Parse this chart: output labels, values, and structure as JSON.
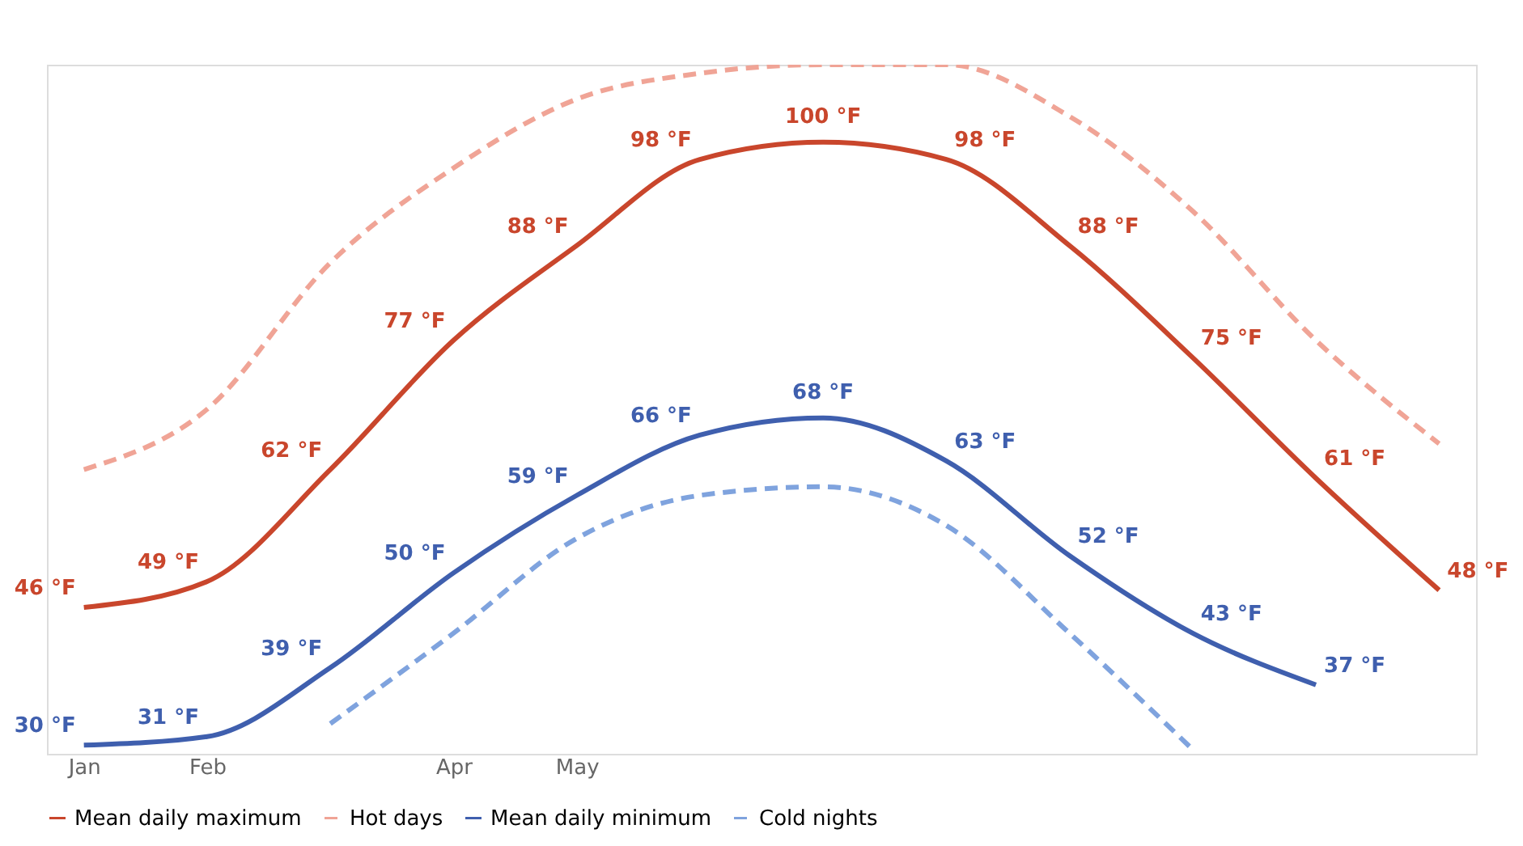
{
  "chart_data": {
    "type": "line",
    "categories": [
      "Jan",
      "Feb",
      null,
      "Apr",
      "May",
      null,
      null,
      null,
      null,
      null,
      null,
      null
    ],
    "ylim": [
      29,
      109
    ],
    "legend": "bottom",
    "grid": false,
    "marker": "none",
    "series": [
      {
        "name": "Mean daily maximum",
        "color": "#c9462c",
        "line_style": "solid",
        "values": [
          46,
          49,
          62,
          77,
          88,
          98,
          100,
          98,
          88,
          75,
          61,
          48
        ],
        "value_labels": [
          "46 °F",
          "49 °F",
          "62 °F",
          "77 °F",
          "88 °F",
          "98 °F",
          "100 °F",
          "98 °F",
          "88 °F",
          "75 °F",
          "61 °F",
          "48 °F"
        ]
      },
      {
        "name": "Hot days",
        "color": "#f0a496",
        "line_style": "dashed",
        "values": [
          62,
          69,
          86,
          97,
          105,
          108,
          109,
          109,
          103,
          92,
          77,
          65
        ]
      },
      {
        "name": "Mean daily minimum",
        "color": "#3f5fae",
        "line_style": "solid",
        "values": [
          30,
          31,
          39,
          50,
          59,
          66,
          68,
          63,
          52,
          43,
          37,
          null
        ],
        "value_labels": [
          "30 °F",
          "31 °F",
          "39 °F",
          "50 °F",
          "59 °F",
          "66 °F",
          "68 °F",
          "63 °F",
          "52 °F",
          "43 °F",
          "37 °F",
          null
        ]
      },
      {
        "name": "Cold nights",
        "color": "#7fa3de",
        "line_style": "dashed",
        "values": [
          null,
          null,
          32.5,
          43,
          54,
          59,
          60,
          55.5,
          43,
          29.5,
          null,
          null
        ]
      }
    ]
  }
}
